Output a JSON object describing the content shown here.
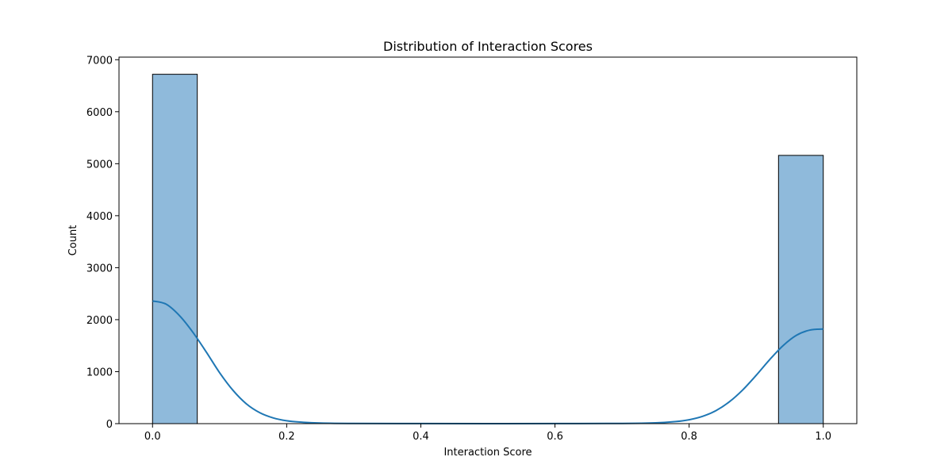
{
  "chart_data": {
    "type": "bar",
    "title": "Distribution of Interaction Scores",
    "xlabel": "Interaction Score",
    "ylabel": "Count",
    "xlim": [
      -0.05,
      1.05
    ],
    "ylim": [
      0,
      7050
    ],
    "x_ticks": [
      0.0,
      0.2,
      0.4,
      0.6,
      0.8,
      1.0
    ],
    "x_tick_labels": [
      "0.0",
      "0.2",
      "0.4",
      "0.6",
      "0.8",
      "1.0"
    ],
    "y_ticks": [
      0,
      1000,
      2000,
      3000,
      4000,
      5000,
      6000,
      7000
    ],
    "y_tick_labels": [
      "0",
      "1000",
      "2000",
      "3000",
      "4000",
      "5000",
      "6000",
      "7000"
    ],
    "bins": [
      {
        "x0": 0.0,
        "x1": 0.0667,
        "count": 6720
      },
      {
        "x0": 0.9333,
        "x1": 1.0,
        "count": 5160
      }
    ],
    "kde": {
      "x": [
        0.0,
        0.02,
        0.04,
        0.06,
        0.08,
        0.1,
        0.12,
        0.14,
        0.16,
        0.18,
        0.2,
        0.22,
        0.25,
        0.3,
        0.4,
        0.5,
        0.6,
        0.7,
        0.75,
        0.78,
        0.8,
        0.82,
        0.84,
        0.86,
        0.88,
        0.9,
        0.92,
        0.94,
        0.96,
        0.98,
        1.0
      ],
      "y": [
        2360,
        2300,
        2080,
        1760,
        1380,
        980,
        640,
        380,
        210,
        110,
        55,
        30,
        12,
        4,
        1,
        0,
        1,
        4,
        15,
        40,
        75,
        140,
        250,
        420,
        650,
        930,
        1230,
        1500,
        1700,
        1800,
        1820
      ]
    },
    "grid": false,
    "legend": "none",
    "colors": {
      "bar_fill": "#8fbadb",
      "bar_edge": "#000000",
      "kde_line": "#1f77b4",
      "axes": "#000000"
    }
  }
}
